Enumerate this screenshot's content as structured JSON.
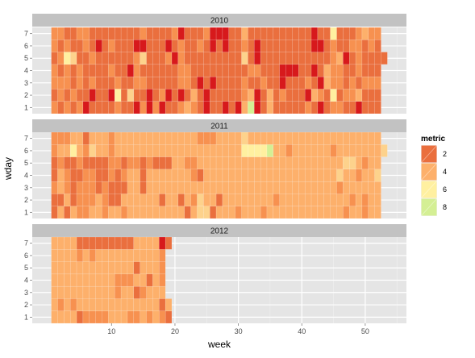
{
  "chart_data": {
    "type": "heatmap",
    "facet_by": "year",
    "xlabel": "week",
    "ylabel": "wday",
    "x_ticks": [
      10,
      20,
      30,
      40,
      50
    ],
    "y_ticks": [
      "1",
      "2",
      "3",
      "4",
      "5",
      "6",
      "7"
    ],
    "xlim": [
      -2.5,
      56.5
    ],
    "ylim": [
      0.5,
      7.5
    ],
    "legend": {
      "title": "metric",
      "position": "right",
      "breaks": [
        "2",
        "4",
        "6",
        "8"
      ],
      "colors": [
        "#ea6f3e",
        "#fdb06b",
        "#fff0a0",
        "#d4ef94"
      ]
    },
    "color_scale": {
      "type": "continuous",
      "low": 1,
      "high": 9,
      "stops": [
        {
          "value": 1,
          "color": "#d7191c"
        },
        {
          "value": 2,
          "color": "#ea6f3e"
        },
        {
          "value": 3,
          "color": "#f79150"
        },
        {
          "value": 4,
          "color": "#fdb06b"
        },
        {
          "value": 5,
          "color": "#fdd28c"
        },
        {
          "value": 6,
          "color": "#fff0a0"
        },
        {
          "value": 7,
          "color": "#e8f59a"
        },
        {
          "value": 8,
          "color": "#d4ef94"
        },
        {
          "value": 9,
          "color": "#a6d96a"
        }
      ]
    },
    "panels": [
      {
        "label": "2010",
        "week_ranges": [
          [
            1,
            52
          ],
          [
            1,
            52
          ],
          [
            1,
            52
          ],
          [
            1,
            52
          ],
          [
            1,
            53
          ],
          [
            1,
            52
          ],
          [
            1,
            52
          ]
        ],
        "values_by_wday": [
          "3232312222322131312234321221214812422222321233221222",
          "2323221221625221231212421222223412423222143262334222",
          "3332323222322332222233212122223223221222321433232333",
          "3232322223221322222233222222222332221112212433223222",
          "23652232222223522231322222222252122222222222341232222",
          "3232232123222112221232232121223212222222211232233232",
          "3322332222222232222312223111224222222222212262223433"
        ]
      },
      {
        "label": "2011",
        "week_ranges": [
          [
            1,
            52
          ],
          [
            1,
            52
          ],
          [
            1,
            52
          ],
          [
            1,
            52
          ],
          [
            1,
            52
          ],
          [
            1,
            53
          ],
          [
            1,
            52
          ]
        ],
        "values_by_wday": [
          "2424334434434444444442455244434443444444444444344344",
          "2242333432244444424424354424444444434444444444434344",
          "3432333232224424444444444444444444444444444443444444",
          "2432233223234424444444324444444444444444444445443445",
          "2322322223323323222443344444444444444444444444554344",
          "34464354434444444444444444444466668443444444344444445",
          "3334424443444444444444433344445444444444444444444444"
        ]
      },
      {
        "label": "2012",
        "week_ranges": [
          [
            1,
            19
          ],
          [
            1,
            19
          ],
          [
            1,
            18
          ],
          [
            1,
            18
          ],
          [
            1,
            18
          ],
          [
            1,
            18
          ],
          [
            1,
            19
          ]
        ],
        "values_by_wday": [
          "4444233334443343432",
          "4343444444444444424",
          "444444444434423444",
          "444444444433344243",
          "444444444444424443",
          "444434344444444443",
          "4444222222222444412"
        ]
      }
    ]
  }
}
